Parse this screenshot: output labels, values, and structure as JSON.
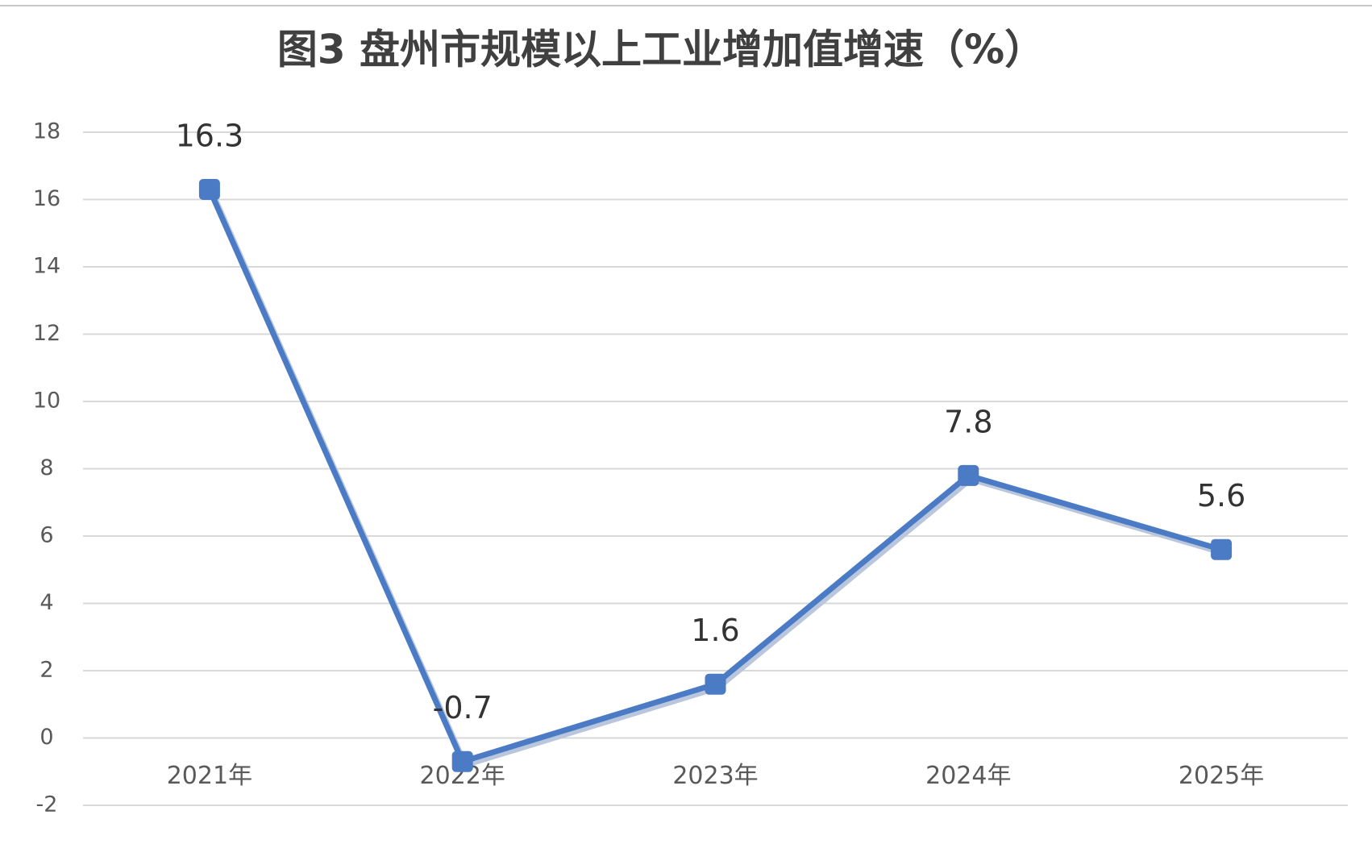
{
  "chart_data": {
    "type": "line",
    "title": "图3  盘州市规模以上工业增加值增速（%）",
    "categories": [
      "2021年",
      "2022年",
      "2023年",
      "2024年",
      "2025年"
    ],
    "series": [
      {
        "name": "增速",
        "color": "#4a7bc4",
        "values": [
          16.3,
          -0.7,
          1.6,
          7.8,
          5.6
        ]
      }
    ],
    "ylim": [
      -2,
      18
    ],
    "yticks": [
      -2,
      0,
      2,
      4,
      6,
      8,
      10,
      12,
      14,
      16,
      18
    ],
    "grid": true
  }
}
